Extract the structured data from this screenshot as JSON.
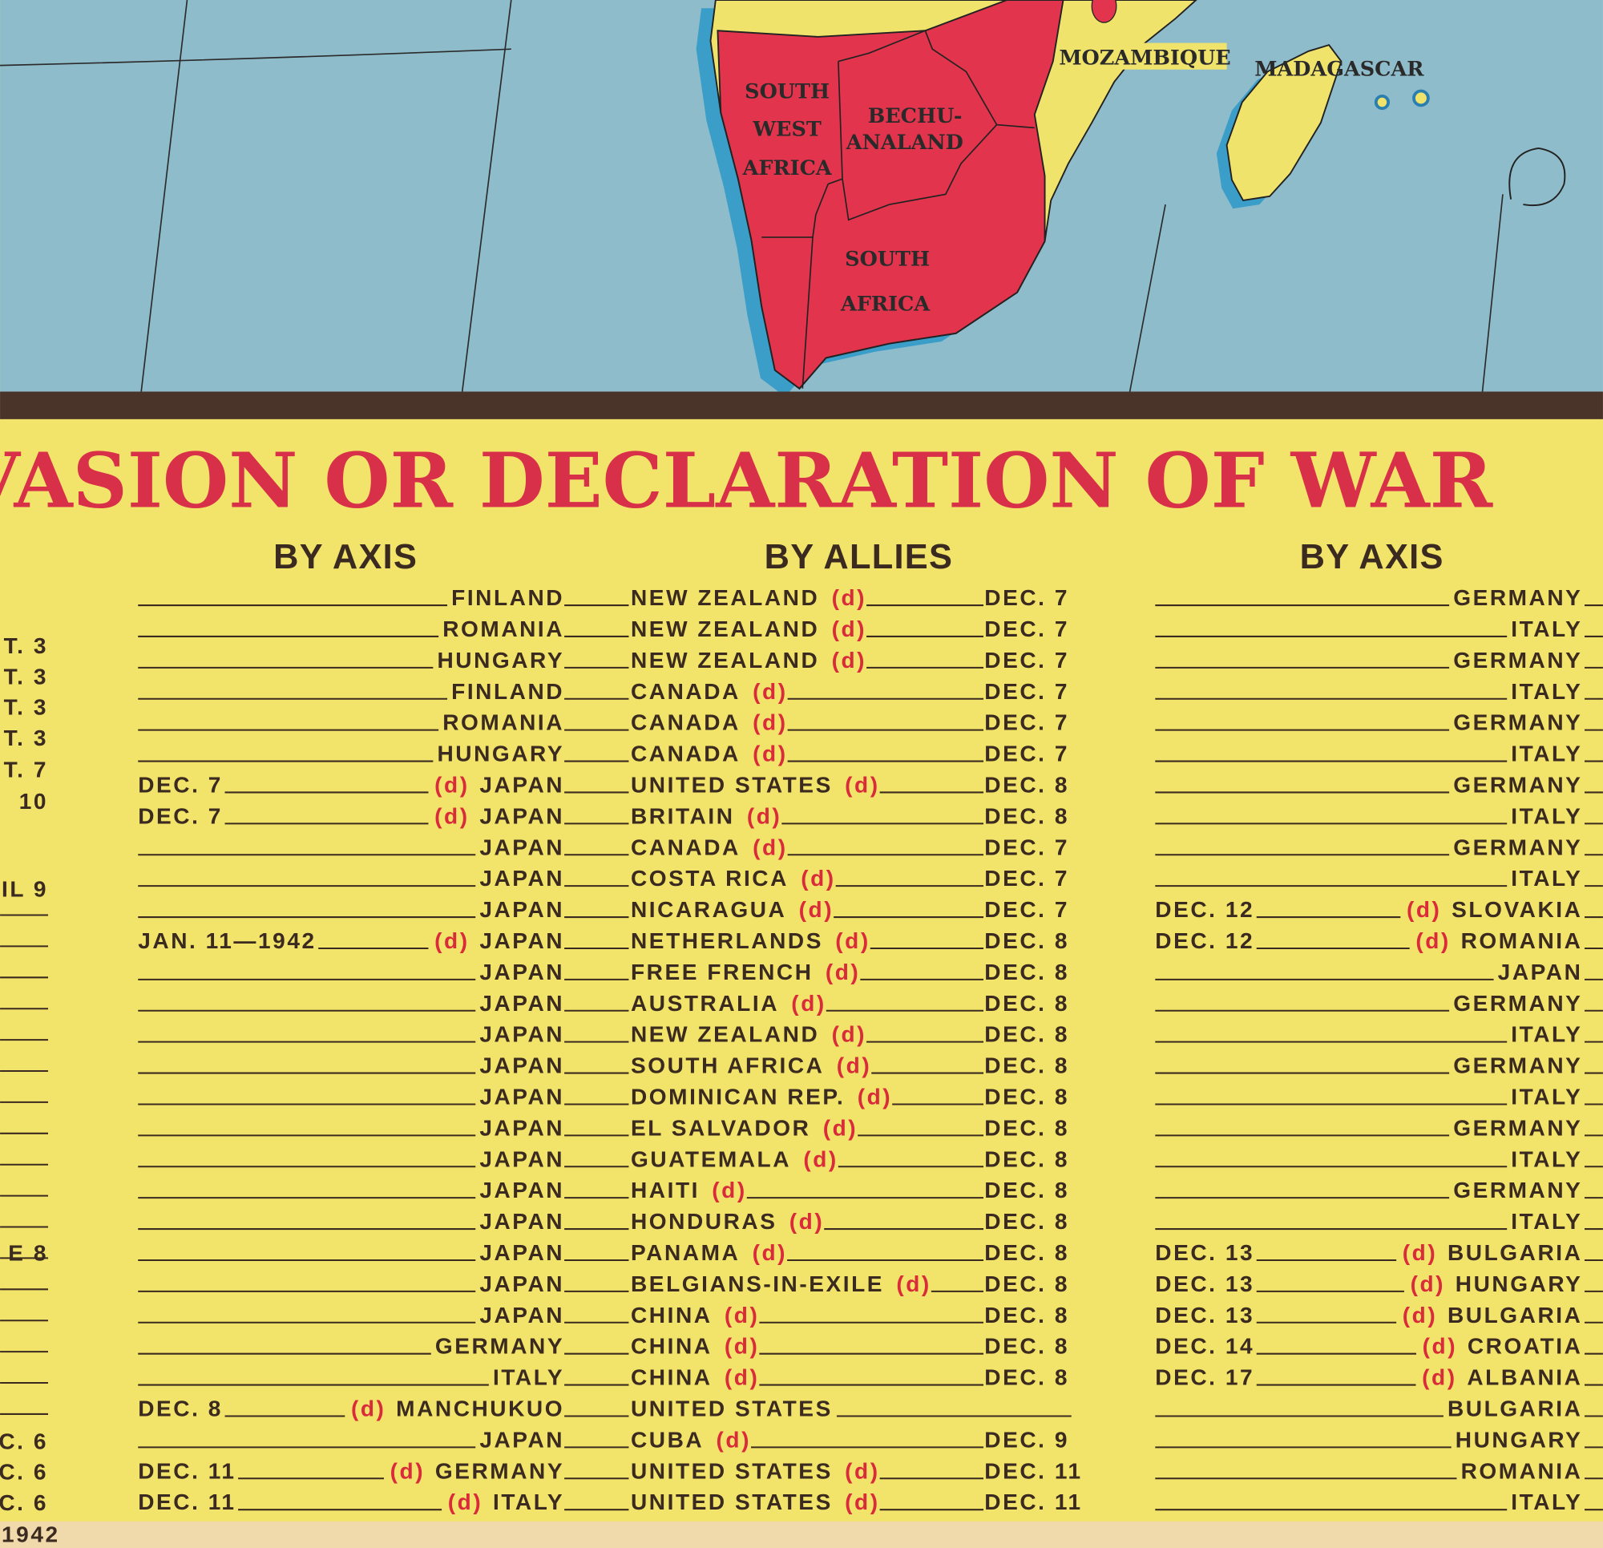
{
  "map": {
    "labels": [
      "MOZAMBIQUE",
      "MADAGASCAR",
      "SOUTH",
      "WEST",
      "AFRICA",
      "BECHU-",
      "ANALAND",
      "SOUTH",
      "AFRICA"
    ]
  },
  "table": {
    "title": "F INVASION OR DECLARATION OF WAR",
    "left_column": {
      "rows": [
        "T. 3",
        "T. 3",
        "T. 3",
        "T. 3",
        "T. 7",
        "10",
        "IL 9",
        "E 8",
        "C. 6",
        "C. 6",
        "C. 6"
      ],
      "footer": "1942"
    },
    "middle": {
      "headers": [
        "BY AXIS",
        "BY ALLIES"
      ],
      "rows": [
        {
          "axis": "FINLAND",
          "ally": "NEW ZEALAND",
          "ally_mark": "(d)",
          "ally_date": "DEC. 7"
        },
        {
          "axis": "ROMANIA",
          "ally": "NEW ZEALAND",
          "ally_mark": "(d)",
          "ally_date": "DEC. 7"
        },
        {
          "axis": "HUNGARY",
          "ally": "NEW ZEALAND",
          "ally_mark": "(d)",
          "ally_date": "DEC. 7"
        },
        {
          "axis": "FINLAND",
          "ally": "CANADA",
          "ally_mark": "(d)",
          "ally_date": "DEC. 7"
        },
        {
          "axis": "ROMANIA",
          "ally": "CANADA",
          "ally_mark": "(d)",
          "ally_date": "DEC. 7"
        },
        {
          "axis": "HUNGARY",
          "ally": "CANADA",
          "ally_mark": "(d)",
          "ally_date": "DEC. 7"
        },
        {
          "axis_date": "DEC. 7",
          "axis_mark": "(d)",
          "axis": "JAPAN",
          "ally": "UNITED STATES",
          "ally_mark": "(d)",
          "ally_date": "DEC. 8"
        },
        {
          "axis_date": "DEC. 7",
          "axis_mark": "(d)",
          "axis": "JAPAN",
          "ally": "BRITAIN",
          "ally_mark": "(d)",
          "ally_date": "DEC. 8"
        },
        {
          "axis": "JAPAN",
          "ally": "CANADA",
          "ally_mark": "(d)",
          "ally_date": "DEC. 7"
        },
        {
          "axis": "JAPAN",
          "ally": "COSTA RICA",
          "ally_mark": "(d)",
          "ally_date": "DEC. 7"
        },
        {
          "axis": "JAPAN",
          "ally": "NICARAGUA",
          "ally_mark": "(d)",
          "ally_date": "DEC. 7"
        },
        {
          "axis_date": "JAN. 11—1942",
          "axis_mark": "(d)",
          "axis": "JAPAN",
          "ally": "NETHERLANDS",
          "ally_mark": "(d)",
          "ally_date": "DEC. 8"
        },
        {
          "axis": "JAPAN",
          "ally": "FREE FRENCH",
          "ally_mark": "(d)",
          "ally_date": "DEC. 8"
        },
        {
          "axis": "JAPAN",
          "ally": "AUSTRALIA",
          "ally_mark": "(d)",
          "ally_date": "DEC. 8"
        },
        {
          "axis": "JAPAN",
          "ally": "NEW ZEALAND",
          "ally_mark": "(d)",
          "ally_date": "DEC. 8"
        },
        {
          "axis": "JAPAN",
          "ally": "SOUTH AFRICA",
          "ally_mark": "(d)",
          "ally_date": "DEC. 8"
        },
        {
          "axis": "JAPAN",
          "ally": "DOMINICAN REP.",
          "ally_mark": "(d)",
          "ally_date": "DEC. 8"
        },
        {
          "axis": "JAPAN",
          "ally": "EL SALVADOR",
          "ally_mark": "(d)",
          "ally_date": "DEC. 8"
        },
        {
          "axis": "JAPAN",
          "ally": "GUATEMALA",
          "ally_mark": "(d)",
          "ally_date": "DEC. 8"
        },
        {
          "axis": "JAPAN",
          "ally": "HAITI",
          "ally_mark": "(d)",
          "ally_date": "DEC. 8"
        },
        {
          "axis": "JAPAN",
          "ally": "HONDURAS",
          "ally_mark": "(d)",
          "ally_date": "DEC. 8"
        },
        {
          "axis": "JAPAN",
          "ally": "PANAMA",
          "ally_mark": "(d)",
          "ally_date": "DEC. 8"
        },
        {
          "axis": "JAPAN",
          "ally": "BELGIANS-IN-EXILE",
          "ally_mark": "(d)",
          "ally_date": "DEC. 8"
        },
        {
          "axis": "JAPAN",
          "ally": "CHINA",
          "ally_mark": "(d)",
          "ally_date": "DEC. 8"
        },
        {
          "axis": "GERMANY",
          "ally": "CHINA",
          "ally_mark": "(d)",
          "ally_date": "DEC. 8"
        },
        {
          "axis": "ITALY",
          "ally": "CHINA",
          "ally_mark": "(d)",
          "ally_date": "DEC. 8"
        },
        {
          "axis_date": "DEC. 8",
          "axis_mark": "(d)",
          "axis": "MANCHUKUO",
          "ally": "UNITED STATES"
        },
        {
          "axis": "JAPAN",
          "ally": "CUBA",
          "ally_mark": "(d)",
          "ally_date": "DEC. 9"
        },
        {
          "axis_date": "DEC. 11",
          "axis_mark": "(d)",
          "axis": "GERMANY",
          "ally": "UNITED STATES",
          "ally_mark": "(d)",
          "ally_date": "DEC. 11"
        },
        {
          "axis_date": "DEC. 11",
          "axis_mark": "(d)",
          "axis": "ITALY",
          "ally": "UNITED STATES",
          "ally_mark": "(d)",
          "ally_date": "DEC. 11"
        }
      ]
    },
    "right": {
      "header": "BY AXIS",
      "rows": [
        {
          "country": "GERMANY"
        },
        {
          "country": "ITALY"
        },
        {
          "country": "GERMANY"
        },
        {
          "country": "ITALY"
        },
        {
          "country": "GERMANY"
        },
        {
          "country": "ITALY"
        },
        {
          "country": "GERMANY"
        },
        {
          "country": "ITALY"
        },
        {
          "country": "GERMANY"
        },
        {
          "country": "ITALY"
        },
        {
          "date": "DEC. 12",
          "mark": "(d)",
          "country": "SLOVAKIA"
        },
        {
          "date": "DEC. 12",
          "mark": "(d)",
          "country": "ROMANIA"
        },
        {
          "country": "JAPAN"
        },
        {
          "country": "GERMANY"
        },
        {
          "country": "ITALY"
        },
        {
          "country": "GERMANY"
        },
        {
          "country": "ITALY"
        },
        {
          "country": "GERMANY"
        },
        {
          "country": "ITALY"
        },
        {
          "country": "GERMANY"
        },
        {
          "country": "ITALY"
        },
        {
          "date": "DEC. 13",
          "mark": "(d)",
          "country": "BULGARIA"
        },
        {
          "date": "DEC. 13",
          "mark": "(d)",
          "country": "HUNGARY"
        },
        {
          "date": "DEC. 13",
          "mark": "(d)",
          "country": "BULGARIA"
        },
        {
          "date": "DEC. 14",
          "mark": "(d)",
          "country": "CROATIA"
        },
        {
          "date": "DEC. 17",
          "mark": "(d)",
          "country": "ALBANIA"
        },
        {
          "country": "BULGARIA"
        },
        {
          "country": "HUNGARY"
        },
        {
          "country": "ROMANIA"
        },
        {
          "country": "ITALY"
        }
      ]
    }
  }
}
